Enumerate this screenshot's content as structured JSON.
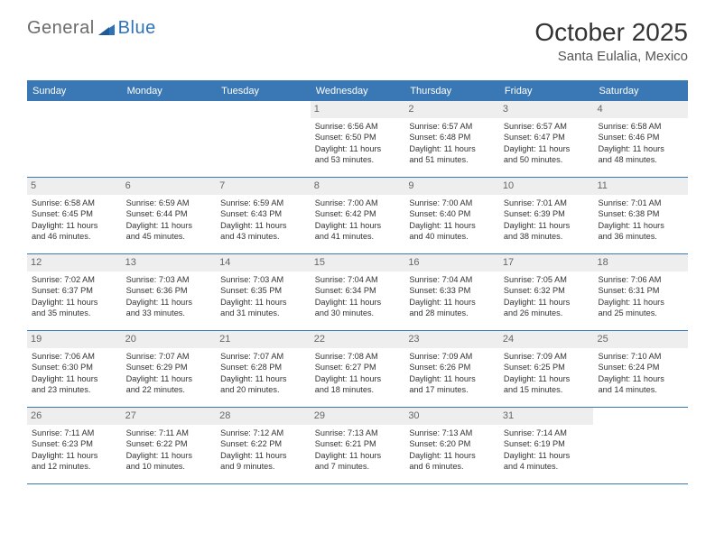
{
  "logo": {
    "text1": "General",
    "text2": "Blue"
  },
  "title": "October 2025",
  "location": "Santa Eulalia, Mexico",
  "colors": {
    "header_bar": "#3a78b5",
    "header_text": "#ffffff",
    "daynum_bg": "#eeeeee",
    "daynum_text": "#666666",
    "body_text": "#333333",
    "logo_gray": "#6b6b6b",
    "logo_blue": "#2f73b7",
    "divider": "#3a78b5"
  },
  "days_of_week": [
    "Sunday",
    "Monday",
    "Tuesday",
    "Wednesday",
    "Thursday",
    "Friday",
    "Saturday"
  ],
  "weeks": [
    [
      null,
      null,
      null,
      {
        "n": "1",
        "sr": "Sunrise: 6:56 AM",
        "ss": "Sunset: 6:50 PM",
        "dl1": "Daylight: 11 hours",
        "dl2": "and 53 minutes."
      },
      {
        "n": "2",
        "sr": "Sunrise: 6:57 AM",
        "ss": "Sunset: 6:48 PM",
        "dl1": "Daylight: 11 hours",
        "dl2": "and 51 minutes."
      },
      {
        "n": "3",
        "sr": "Sunrise: 6:57 AM",
        "ss": "Sunset: 6:47 PM",
        "dl1": "Daylight: 11 hours",
        "dl2": "and 50 minutes."
      },
      {
        "n": "4",
        "sr": "Sunrise: 6:58 AM",
        "ss": "Sunset: 6:46 PM",
        "dl1": "Daylight: 11 hours",
        "dl2": "and 48 minutes."
      }
    ],
    [
      {
        "n": "5",
        "sr": "Sunrise: 6:58 AM",
        "ss": "Sunset: 6:45 PM",
        "dl1": "Daylight: 11 hours",
        "dl2": "and 46 minutes."
      },
      {
        "n": "6",
        "sr": "Sunrise: 6:59 AM",
        "ss": "Sunset: 6:44 PM",
        "dl1": "Daylight: 11 hours",
        "dl2": "and 45 minutes."
      },
      {
        "n": "7",
        "sr": "Sunrise: 6:59 AM",
        "ss": "Sunset: 6:43 PM",
        "dl1": "Daylight: 11 hours",
        "dl2": "and 43 minutes."
      },
      {
        "n": "8",
        "sr": "Sunrise: 7:00 AM",
        "ss": "Sunset: 6:42 PM",
        "dl1": "Daylight: 11 hours",
        "dl2": "and 41 minutes."
      },
      {
        "n": "9",
        "sr": "Sunrise: 7:00 AM",
        "ss": "Sunset: 6:40 PM",
        "dl1": "Daylight: 11 hours",
        "dl2": "and 40 minutes."
      },
      {
        "n": "10",
        "sr": "Sunrise: 7:01 AM",
        "ss": "Sunset: 6:39 PM",
        "dl1": "Daylight: 11 hours",
        "dl2": "and 38 minutes."
      },
      {
        "n": "11",
        "sr": "Sunrise: 7:01 AM",
        "ss": "Sunset: 6:38 PM",
        "dl1": "Daylight: 11 hours",
        "dl2": "and 36 minutes."
      }
    ],
    [
      {
        "n": "12",
        "sr": "Sunrise: 7:02 AM",
        "ss": "Sunset: 6:37 PM",
        "dl1": "Daylight: 11 hours",
        "dl2": "and 35 minutes."
      },
      {
        "n": "13",
        "sr": "Sunrise: 7:03 AM",
        "ss": "Sunset: 6:36 PM",
        "dl1": "Daylight: 11 hours",
        "dl2": "and 33 minutes."
      },
      {
        "n": "14",
        "sr": "Sunrise: 7:03 AM",
        "ss": "Sunset: 6:35 PM",
        "dl1": "Daylight: 11 hours",
        "dl2": "and 31 minutes."
      },
      {
        "n": "15",
        "sr": "Sunrise: 7:04 AM",
        "ss": "Sunset: 6:34 PM",
        "dl1": "Daylight: 11 hours",
        "dl2": "and 30 minutes."
      },
      {
        "n": "16",
        "sr": "Sunrise: 7:04 AM",
        "ss": "Sunset: 6:33 PM",
        "dl1": "Daylight: 11 hours",
        "dl2": "and 28 minutes."
      },
      {
        "n": "17",
        "sr": "Sunrise: 7:05 AM",
        "ss": "Sunset: 6:32 PM",
        "dl1": "Daylight: 11 hours",
        "dl2": "and 26 minutes."
      },
      {
        "n": "18",
        "sr": "Sunrise: 7:06 AM",
        "ss": "Sunset: 6:31 PM",
        "dl1": "Daylight: 11 hours",
        "dl2": "and 25 minutes."
      }
    ],
    [
      {
        "n": "19",
        "sr": "Sunrise: 7:06 AM",
        "ss": "Sunset: 6:30 PM",
        "dl1": "Daylight: 11 hours",
        "dl2": "and 23 minutes."
      },
      {
        "n": "20",
        "sr": "Sunrise: 7:07 AM",
        "ss": "Sunset: 6:29 PM",
        "dl1": "Daylight: 11 hours",
        "dl2": "and 22 minutes."
      },
      {
        "n": "21",
        "sr": "Sunrise: 7:07 AM",
        "ss": "Sunset: 6:28 PM",
        "dl1": "Daylight: 11 hours",
        "dl2": "and 20 minutes."
      },
      {
        "n": "22",
        "sr": "Sunrise: 7:08 AM",
        "ss": "Sunset: 6:27 PM",
        "dl1": "Daylight: 11 hours",
        "dl2": "and 18 minutes."
      },
      {
        "n": "23",
        "sr": "Sunrise: 7:09 AM",
        "ss": "Sunset: 6:26 PM",
        "dl1": "Daylight: 11 hours",
        "dl2": "and 17 minutes."
      },
      {
        "n": "24",
        "sr": "Sunrise: 7:09 AM",
        "ss": "Sunset: 6:25 PM",
        "dl1": "Daylight: 11 hours",
        "dl2": "and 15 minutes."
      },
      {
        "n": "25",
        "sr": "Sunrise: 7:10 AM",
        "ss": "Sunset: 6:24 PM",
        "dl1": "Daylight: 11 hours",
        "dl2": "and 14 minutes."
      }
    ],
    [
      {
        "n": "26",
        "sr": "Sunrise: 7:11 AM",
        "ss": "Sunset: 6:23 PM",
        "dl1": "Daylight: 11 hours",
        "dl2": "and 12 minutes."
      },
      {
        "n": "27",
        "sr": "Sunrise: 7:11 AM",
        "ss": "Sunset: 6:22 PM",
        "dl1": "Daylight: 11 hours",
        "dl2": "and 10 minutes."
      },
      {
        "n": "28",
        "sr": "Sunrise: 7:12 AM",
        "ss": "Sunset: 6:22 PM",
        "dl1": "Daylight: 11 hours",
        "dl2": "and 9 minutes."
      },
      {
        "n": "29",
        "sr": "Sunrise: 7:13 AM",
        "ss": "Sunset: 6:21 PM",
        "dl1": "Daylight: 11 hours",
        "dl2": "and 7 minutes."
      },
      {
        "n": "30",
        "sr": "Sunrise: 7:13 AM",
        "ss": "Sunset: 6:20 PM",
        "dl1": "Daylight: 11 hours",
        "dl2": "and 6 minutes."
      },
      {
        "n": "31",
        "sr": "Sunrise: 7:14 AM",
        "ss": "Sunset: 6:19 PM",
        "dl1": "Daylight: 11 hours",
        "dl2": "and 4 minutes."
      },
      null
    ]
  ]
}
